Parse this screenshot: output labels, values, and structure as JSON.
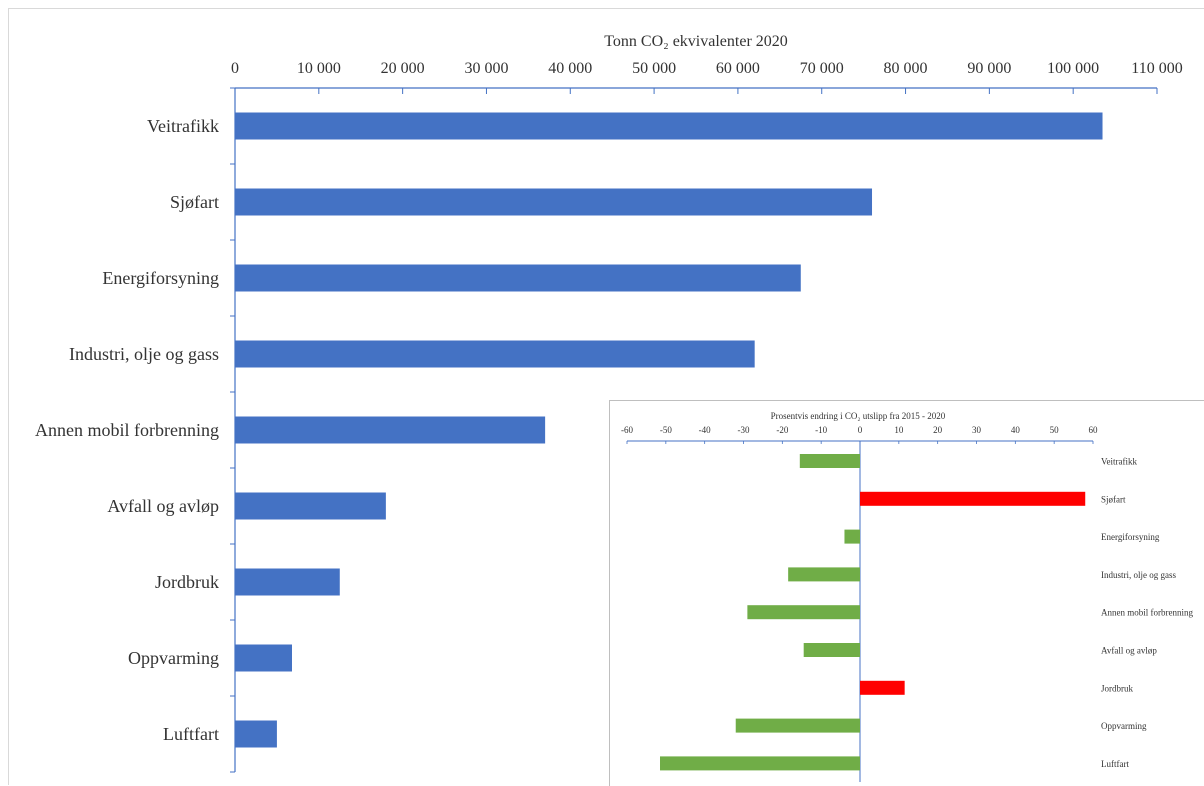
{
  "chart_data": [
    {
      "type": "bar",
      "orientation": "horizontal",
      "title": "Tonn CO₂ ekvivalenter 2020",
      "categories": [
        "Veitrafikk",
        "Sjøfart",
        "Energiforsyning",
        "Industri, olje og gass",
        "Annen mobil forbrenning",
        "Avfall og avløp",
        "Jordbruk",
        "Oppvarming",
        "Luftfart"
      ],
      "values": [
        103500,
        76000,
        67500,
        62000,
        37000,
        18000,
        12500,
        6800,
        5000
      ],
      "xlim": [
        0,
        110000
      ],
      "xticks": [
        0,
        10000,
        20000,
        30000,
        40000,
        50000,
        60000,
        70000,
        80000,
        90000,
        100000,
        110000
      ],
      "xtick_labels": [
        "0",
        "10 000",
        "20 000",
        "30 000",
        "40 000",
        "50 000",
        "60 000",
        "70 000",
        "80 000",
        "90 000",
        "100 000",
        "110 000"
      ],
      "axis_position": "top",
      "color": "#4472c4",
      "grid": false
    },
    {
      "type": "bar",
      "orientation": "horizontal",
      "title": "Prosentvis endring i CO₂ utslipp fra 2015 - 2020",
      "categories": [
        "Veitrafikk",
        "Sjøfart",
        "Energiforsyning",
        "Industri, olje og gass",
        "Annen mobil forbrenning",
        "Avfall og avløp",
        "Jordbruk",
        "Oppvarming",
        "Luftfart"
      ],
      "values": [
        -15.5,
        58,
        -4,
        -18.5,
        -29,
        -14.5,
        11.5,
        -32,
        -51.5
      ],
      "xlim": [
        -60,
        60
      ],
      "xticks": [
        -60,
        -50,
        -40,
        -30,
        -20,
        -10,
        0,
        10,
        20,
        30,
        40,
        50,
        60
      ],
      "axis_position": "top",
      "colors": {
        "negative": "#70ad47",
        "positive": "#ff0000"
      },
      "grid": false
    }
  ]
}
